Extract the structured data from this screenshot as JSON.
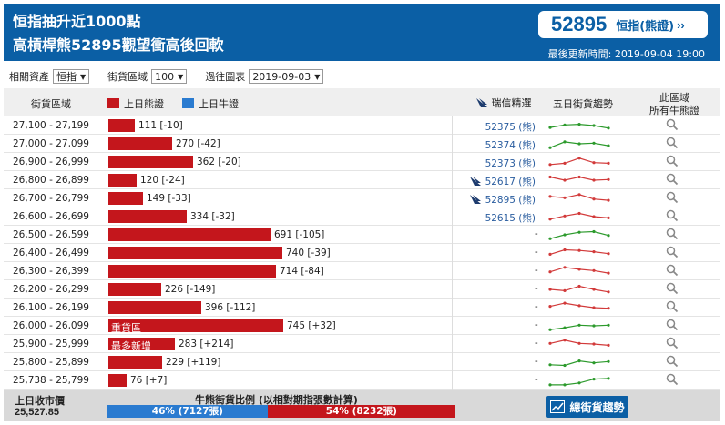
{
  "header": {
    "headline1": "恒指抽升近1000點",
    "headline2": "高槓桿熊52895觀望衝高後回軟",
    "price": "52895",
    "price_name": "恒指(熊證)",
    "price_arrow": "››",
    "updated": "最後更新時間: 2019-09-04 19:00"
  },
  "filters": {
    "asset_label": "相關資產",
    "asset_value": "恒指",
    "zone_label": "街貨區域",
    "zone_value": "100",
    "chart_label": "過往圖表",
    "chart_value": "2019-09-03"
  },
  "table_header": {
    "zone": "街貨區域",
    "bear_legend": "上日熊證",
    "bull_legend": "上日牛證",
    "picks": "瑞信精選",
    "trend": "五日街貨趨勢",
    "all_line1": "此區域",
    "all_line2": "所有牛熊證"
  },
  "chart_data": {
    "type": "bar",
    "title": "",
    "xlabel": "",
    "ylabel": "",
    "categories": [
      "27,100 - 27,199",
      "27,000 - 27,099",
      "26,900 - 26,999",
      "26,800 - 26,899",
      "26,700 - 26,799",
      "26,600 - 26,699",
      "26,500 - 26,599",
      "26,400 - 26,499",
      "26,300 - 26,399",
      "26,200 - 26,299",
      "26,100 - 26,199",
      "26,000 - 26,099",
      "25,900 - 25,999",
      "25,800 - 25,899",
      "25,738 - 25,799"
    ],
    "series": [
      {
        "name": "上日熊證",
        "values": [
          111,
          270,
          362,
          120,
          149,
          334,
          691,
          740,
          714,
          226,
          396,
          745,
          283,
          229,
          76
        ]
      }
    ],
    "changes": [
      -10,
      -42,
      -20,
      -24,
      -33,
      -32,
      -105,
      -39,
      -84,
      -149,
      -112,
      32,
      214,
      119,
      7
    ]
  },
  "rows": [
    {
      "range": "27,100 - 27,199",
      "bear": 111,
      "label": "111 [-10]",
      "tag": "",
      "pick": "52375 (熊)",
      "icon": false,
      "trend_color": "#2c9a2c",
      "trend": [
        0.35,
        0.55,
        0.6,
        0.5,
        0.3
      ]
    },
    {
      "range": "27,000 - 27,099",
      "bear": 270,
      "label": "270 [-42]",
      "tag": "",
      "pick": "52374 (熊)",
      "icon": false,
      "trend_color": "#2c9a2c",
      "trend": [
        0.2,
        0.65,
        0.5,
        0.55,
        0.35
      ]
    },
    {
      "range": "26,900 - 26,999",
      "bear": 362,
      "label": "362 [-20]",
      "tag": "",
      "pick": "52373 (熊)",
      "icon": false,
      "trend_color": "#d23a3a",
      "trend": [
        0.3,
        0.4,
        0.8,
        0.45,
        0.4
      ]
    },
    {
      "range": "26,800 - 26,899",
      "bear": 120,
      "label": "120 [-24]",
      "tag": "",
      "pick": "52617 (熊)",
      "icon": true,
      "trend_color": "#d23a3a",
      "trend": [
        0.75,
        0.5,
        0.75,
        0.5,
        0.55
      ]
    },
    {
      "range": "26,700 - 26,799",
      "bear": 149,
      "label": "149 [-33]",
      "tag": "",
      "pick": "52895 (熊)",
      "icon": true,
      "trend_color": "#d23a3a",
      "trend": [
        0.65,
        0.55,
        0.8,
        0.45,
        0.35
      ]
    },
    {
      "range": "26,600 - 26,699",
      "bear": 334,
      "label": "334 [-32]",
      "tag": "",
      "pick": "52615 (熊)",
      "icon": false,
      "trend_color": "#d23a3a",
      "trend": [
        0.3,
        0.55,
        0.75,
        0.5,
        0.4
      ]
    },
    {
      "range": "26,500 - 26,599",
      "bear": 691,
      "label": "691 [-105]",
      "tag": "",
      "pick": "-",
      "icon": false,
      "trend_color": "#2c9a2c",
      "trend": [
        0.2,
        0.5,
        0.7,
        0.75,
        0.45
      ]
    },
    {
      "range": "26,400 - 26,499",
      "bear": 740,
      "label": "740 [-39]",
      "tag": "",
      "pick": "-",
      "icon": false,
      "trend_color": "#d23a3a",
      "trend": [
        0.4,
        0.75,
        0.7,
        0.6,
        0.45
      ]
    },
    {
      "range": "26,300 - 26,399",
      "bear": 714,
      "label": "714 [-84]",
      "tag": "",
      "pick": "-",
      "icon": false,
      "trend_color": "#d23a3a",
      "trend": [
        0.45,
        0.8,
        0.65,
        0.55,
        0.35
      ]
    },
    {
      "range": "26,200 - 26,299",
      "bear": 226,
      "label": "226 [-149]",
      "tag": "",
      "pick": "-",
      "icon": false,
      "trend_color": "#d23a3a",
      "trend": [
        0.5,
        0.4,
        0.75,
        0.5,
        0.3
      ]
    },
    {
      "range": "26,100 - 26,199",
      "bear": 396,
      "label": "396 [-112]",
      "tag": "",
      "pick": "-",
      "icon": false,
      "trend_color": "#d23a3a",
      "trend": [
        0.6,
        0.85,
        0.65,
        0.5,
        0.45
      ]
    },
    {
      "range": "26,000 - 26,099",
      "bear": 745,
      "label": "745 [+32]",
      "tag": "重貨區",
      "pick": "-",
      "icon": false,
      "trend_color": "#2c9a2c",
      "trend": [
        0.2,
        0.35,
        0.55,
        0.5,
        0.55
      ]
    },
    {
      "range": "25,900 - 25,999",
      "bear": 283,
      "label": "283 [+214]",
      "tag": "最多新增",
      "pick": "-",
      "icon": false,
      "trend_color": "#d23a3a",
      "trend": [
        0.55,
        0.8,
        0.55,
        0.5,
        0.4
      ]
    },
    {
      "range": "25,800 - 25,899",
      "bear": 229,
      "label": "229 [+119]",
      "tag": "",
      "pick": "-",
      "icon": false,
      "trend_color": "#2c9a2c",
      "trend": [
        0.3,
        0.25,
        0.6,
        0.45,
        0.55
      ]
    },
    {
      "range": "25,738 - 25,799",
      "bear": 76,
      "label": "76 [+7]",
      "tag": "",
      "pick": "-",
      "icon": false,
      "trend_color": "#2c9a2c",
      "trend": [
        0.15,
        0.15,
        0.3,
        0.6,
        0.65
      ]
    }
  ],
  "footer": {
    "close_label": "上日收市價",
    "close_value": "25,527.85",
    "ratio_title": "牛熊街貨比例 (以相對期指張數計算)",
    "bull_pct": 46,
    "bull_text": "46% (7127張)",
    "bear_text": "54% (8232張)",
    "trend_button": "總街貨趨勢"
  },
  "colors": {
    "brand": "#0b5fa5",
    "bear": "#c4161c",
    "bull": "#2a7bd0",
    "up": "#2c9a2c",
    "down": "#d23a3a"
  }
}
